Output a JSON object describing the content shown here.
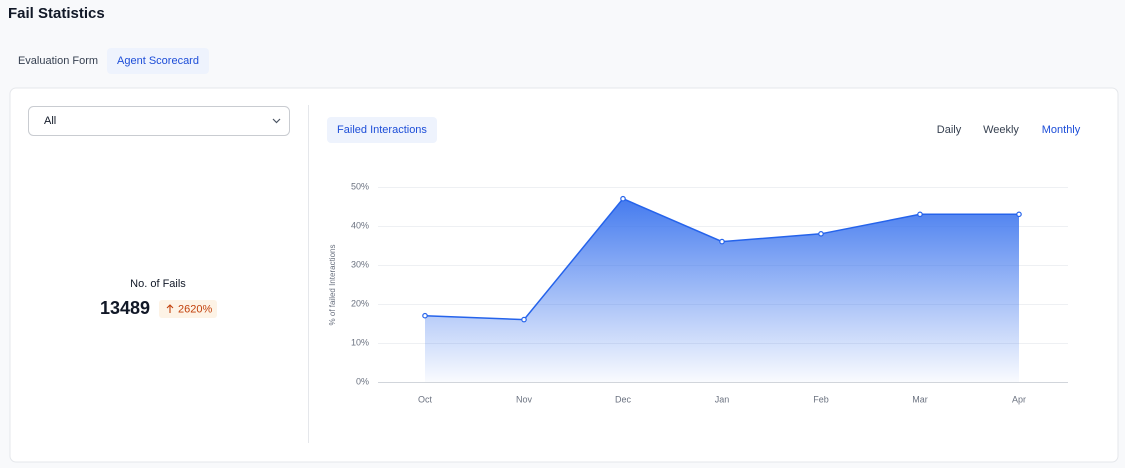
{
  "header": {
    "title": "Fail Statistics"
  },
  "tabs": [
    "Evaluation Form",
    "Agent Scorecard"
  ],
  "active_tab": 1,
  "filter": {
    "selected": "All"
  },
  "summary": {
    "label": "No. of Fails",
    "value": 13489,
    "change": "2620%"
  },
  "chart_tab": "Failed Interactions",
  "periods": [
    "Daily",
    "Weekly",
    "Monthly"
  ],
  "active_period": 2,
  "chart_data": {
    "type": "area",
    "y_label": "% of failed Interactions",
    "categories": [
      "Oct",
      "Nov",
      "Dec",
      "Jan",
      "Feb",
      "Mar",
      "Apr"
    ],
    "values": [
      17,
      16,
      47,
      36,
      38,
      43,
      43
    ],
    "color": "#2563eb",
    "ylim": [
      0,
      50
    ],
    "yticks": [
      {
        "value": 0,
        "label": "0%"
      },
      {
        "value": 10,
        "label": "10%"
      },
      {
        "value": 20,
        "label": "20%"
      },
      {
        "value": 30,
        "label": "30%"
      },
      {
        "value": 40,
        "label": "40%"
      },
      {
        "value": 50,
        "label": "50%"
      }
    ],
    "grid": true
  }
}
